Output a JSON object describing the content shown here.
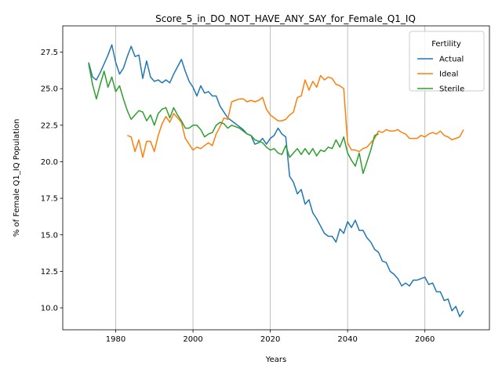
{
  "chart_data": {
    "type": "line",
    "title": "Score_5_in_DO_NOT_HAVE_ANY_SAY_for_Female_Q1_IQ",
    "xlabel": "Years",
    "ylabel": "% of Female Q1_IQ Population",
    "xlim": [
      1966.3,
      2076.7
    ],
    "ylim": [
      8.5,
      29.3
    ],
    "xticks": [
      1980,
      2000,
      2020,
      2040,
      2060
    ],
    "yticks": [
      10.0,
      12.5,
      15.0,
      17.5,
      20.0,
      22.5,
      25.0,
      27.5
    ],
    "grid": "x-only",
    "legend": {
      "title": "Fertility",
      "placement": "top-right"
    },
    "series": [
      {
        "name": "Actual",
        "color": "#1f77b4",
        "x": [
          1973,
          1974,
          1975,
          1976,
          1977,
          1978,
          1979,
          1980,
          1981,
          1982,
          1983,
          1984,
          1985,
          1986,
          1987,
          1988,
          1989,
          1990,
          1991,
          1992,
          1993,
          1994,
          1995,
          1996,
          1997,
          1998,
          1999,
          2000,
          2001,
          2002,
          2003,
          2004,
          2005,
          2006,
          2007,
          2008,
          2009,
          2010,
          2011,
          2012,
          2013,
          2014,
          2015,
          2016,
          2017,
          2018,
          2019,
          2020,
          2021,
          2022,
          2023,
          2024,
          2025,
          2026,
          2027,
          2028,
          2029,
          2030,
          2031,
          2032,
          2033,
          2034,
          2035,
          2036,
          2037,
          2038,
          2039,
          2040,
          2041,
          2042,
          2043,
          2044,
          2045,
          2046,
          2047,
          2048,
          2049,
          2050,
          2051,
          2052,
          2053,
          2054,
          2055,
          2056,
          2057,
          2058,
          2059,
          2060,
          2061,
          2062,
          2063,
          2064,
          2065,
          2066,
          2067,
          2068,
          2069,
          2070
        ],
        "values": [
          26.8,
          25.8,
          25.6,
          26.1,
          26.7,
          27.3,
          28.0,
          26.8,
          26.0,
          26.4,
          27.2,
          27.9,
          27.2,
          27.3,
          25.7,
          26.9,
          25.8,
          25.5,
          25.6,
          25.4,
          25.6,
          25.4,
          26.0,
          26.5,
          27.0,
          26.2,
          25.5,
          25.1,
          24.5,
          25.2,
          24.7,
          24.8,
          24.5,
          24.5,
          23.8,
          23.4,
          23.0,
          22.8,
          22.6,
          22.4,
          22.2,
          21.9,
          21.8,
          21.2,
          21.3,
          21.6,
          21.2,
          21.6,
          21.8,
          22.3,
          21.9,
          21.7,
          19.0,
          18.6,
          17.8,
          18.1,
          17.1,
          17.4,
          16.5,
          16.1,
          15.6,
          15.1,
          14.9,
          14.9,
          14.5,
          15.4,
          15.1,
          15.9,
          15.5,
          16.0,
          15.3,
          15.3,
          14.8,
          14.5,
          14.0,
          13.8,
          13.2,
          13.1,
          12.5,
          12.3,
          12.0,
          11.5,
          11.7,
          11.5,
          11.9,
          11.9,
          12.0,
          12.1,
          11.6,
          11.7,
          11.1,
          11.1,
          10.5,
          10.6,
          9.8,
          10.1,
          9.4,
          9.8
        ]
      },
      {
        "name": "Ideal",
        "color": "#ff7f0e",
        "x": [
          1983,
          1984,
          1985,
          1986,
          1987,
          1988,
          1989,
          1990,
          1991,
          1992,
          1993,
          1994,
          1995,
          1996,
          1997,
          1998,
          1999,
          2000,
          2001,
          2002,
          2003,
          2004,
          2005,
          2006,
          2007,
          2008,
          2009,
          2010,
          2011,
          2012,
          2013,
          2014,
          2015,
          2016,
          2017,
          2018,
          2019,
          2020,
          2021,
          2022,
          2023,
          2024,
          2025,
          2026,
          2027,
          2028,
          2029,
          2030,
          2031,
          2032,
          2033,
          2034,
          2035,
          2036,
          2037,
          2038,
          2039,
          2040,
          2041,
          2042,
          2043,
          2044,
          2045,
          2046,
          2047,
          2048,
          2049,
          2050,
          2051,
          2052,
          2053,
          2054,
          2055,
          2056,
          2057,
          2058,
          2059,
          2060,
          2061,
          2062,
          2063,
          2064,
          2065,
          2066,
          2067,
          2068,
          2069,
          2070
        ],
        "values": [
          21.8,
          21.7,
          20.7,
          21.5,
          20.3,
          21.4,
          21.4,
          20.7,
          21.8,
          22.6,
          23.1,
          22.7,
          23.3,
          23.0,
          22.7,
          21.6,
          21.2,
          20.8,
          21.0,
          20.9,
          21.1,
          21.3,
          21.1,
          21.9,
          22.4,
          23.0,
          22.9,
          24.1,
          24.2,
          24.3,
          24.3,
          24.1,
          24.2,
          24.1,
          24.2,
          24.4,
          23.6,
          23.2,
          23.0,
          22.8,
          22.8,
          22.9,
          23.2,
          23.4,
          24.4,
          24.5,
          25.6,
          24.9,
          25.5,
          25.1,
          25.9,
          25.6,
          25.8,
          25.7,
          25.3,
          25.2,
          25.0,
          21.3,
          20.8,
          20.8,
          20.7,
          20.9,
          21.0,
          21.3,
          21.6,
          22.1,
          22.0,
          22.2,
          22.1,
          22.1,
          22.2,
          22.0,
          21.9,
          21.6,
          21.6,
          21.6,
          21.8,
          21.7,
          21.9,
          22.0,
          21.9,
          22.1,
          21.8,
          21.7,
          21.5,
          21.6,
          21.7,
          22.2
        ]
      },
      {
        "name": "Sterile",
        "color": "#2ca02c",
        "x": [
          1973,
          1974,
          1975,
          1976,
          1977,
          1978,
          1979,
          1980,
          1981,
          1982,
          1983,
          1984,
          1985,
          1986,
          1987,
          1988,
          1989,
          1990,
          1991,
          1992,
          1993,
          1994,
          1995,
          1996,
          1997,
          1998,
          1999,
          2000,
          2001,
          2002,
          2003,
          2004,
          2005,
          2006,
          2007,
          2008,
          2009,
          2010,
          2011,
          2012,
          2013,
          2014,
          2015,
          2016,
          2017,
          2018,
          2019,
          2020,
          2021,
          2022,
          2023,
          2024,
          2025,
          2026,
          2027,
          2028,
          2029,
          2030,
          2031,
          2032,
          2033,
          2034,
          2035,
          2036,
          2037,
          2038,
          2039,
          2040,
          2041,
          2042,
          2043,
          2044,
          2045,
          2046,
          2047,
          2048
        ],
        "values": [
          26.7,
          25.3,
          24.3,
          25.3,
          26.2,
          25.1,
          25.8,
          24.8,
          25.2,
          24.3,
          23.5,
          22.9,
          23.2,
          23.5,
          23.4,
          22.8,
          23.2,
          22.5,
          23.3,
          23.6,
          23.7,
          23.0,
          23.7,
          23.2,
          22.8,
          22.3,
          22.3,
          22.5,
          22.5,
          22.2,
          21.7,
          21.9,
          22.0,
          22.5,
          22.7,
          22.6,
          22.3,
          22.5,
          22.4,
          22.3,
          22.1,
          21.9,
          21.8,
          21.5,
          21.4,
          21.3,
          21.0,
          20.8,
          20.9,
          20.6,
          20.5,
          21.1,
          20.3,
          20.6,
          20.9,
          20.5,
          20.9,
          20.5,
          20.9,
          20.4,
          20.8,
          20.7,
          21.0,
          20.9,
          21.5,
          21.0,
          21.7,
          20.6,
          20.1,
          19.7,
          20.6,
          19.2,
          20.0,
          20.8,
          21.8,
          21.9
        ]
      }
    ]
  }
}
